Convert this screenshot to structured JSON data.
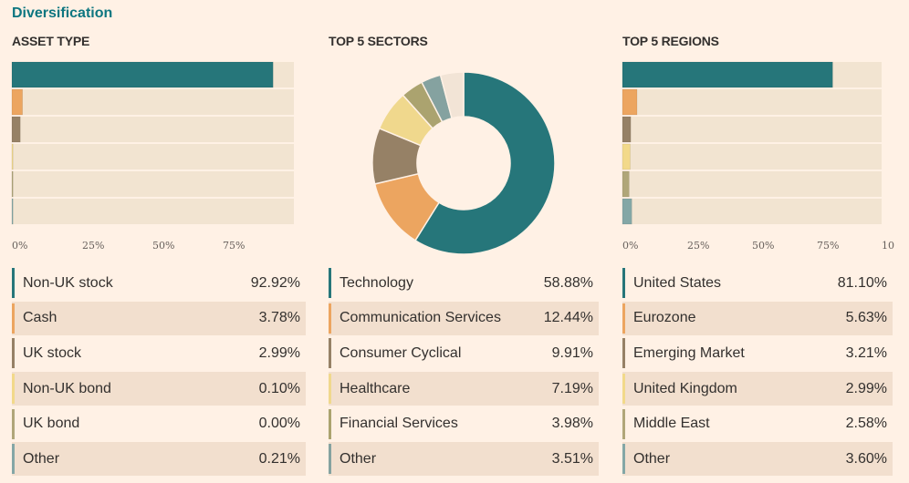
{
  "section_title": "Diversification",
  "chart_data": [
    {
      "type": "bar",
      "orientation": "horizontal",
      "title": "ASSET TYPE",
      "categories": [
        "Non-UK stock",
        "Cash",
        "UK stock",
        "Non-UK bond",
        "UK bond",
        "Other"
      ],
      "values": [
        92.92,
        3.78,
        2.99,
        0.1,
        0.0,
        0.21
      ],
      "value_labels": [
        "92.92%",
        "3.78%",
        "2.99%",
        "0.10%",
        "0.00%",
        "0.21%"
      ],
      "colors": [
        "#26767a",
        "#eca560",
        "#968166",
        "#f2d98a",
        "#b0a679",
        "#84a7a6"
      ],
      "ticks": [
        "0%",
        "25%",
        "50%",
        "75%"
      ],
      "xlim": [
        0,
        100
      ]
    },
    {
      "type": "pie",
      "donut": true,
      "title": "TOP 5 SECTORS",
      "categories": [
        "Technology",
        "Communication Services",
        "Consumer Cyclical",
        "Healthcare",
        "Financial Services",
        "Other"
      ],
      "values": [
        58.88,
        12.44,
        9.91,
        7.19,
        3.98,
        3.51
      ],
      "value_labels": [
        "58.88%",
        "12.44%",
        "9.91%",
        "7.19%",
        "3.98%",
        "3.51%"
      ],
      "remainder_color": "#f2e4d6",
      "colors": [
        "#26767a",
        "#eca560",
        "#968166",
        "#f0d88d",
        "#aba36f",
        "#85a2a0"
      ]
    },
    {
      "type": "bar",
      "orientation": "horizontal",
      "title": "TOP 5 REGIONS",
      "categories": [
        "United States",
        "Eurozone",
        "Emerging Market",
        "United Kingdom",
        "Middle East",
        "Other"
      ],
      "values": [
        81.1,
        5.63,
        3.21,
        2.99,
        2.58,
        3.6
      ],
      "value_labels": [
        "81.10%",
        "5.63%",
        "3.21%",
        "2.99%",
        "2.58%",
        "3.60%"
      ],
      "colors": [
        "#26767a",
        "#eca560",
        "#968166",
        "#f2d98a",
        "#b0a679",
        "#84a7a6"
      ],
      "ticks": [
        "0%",
        "25%",
        "50%",
        "75%",
        "10"
      ],
      "xlim": [
        0,
        100
      ]
    }
  ]
}
